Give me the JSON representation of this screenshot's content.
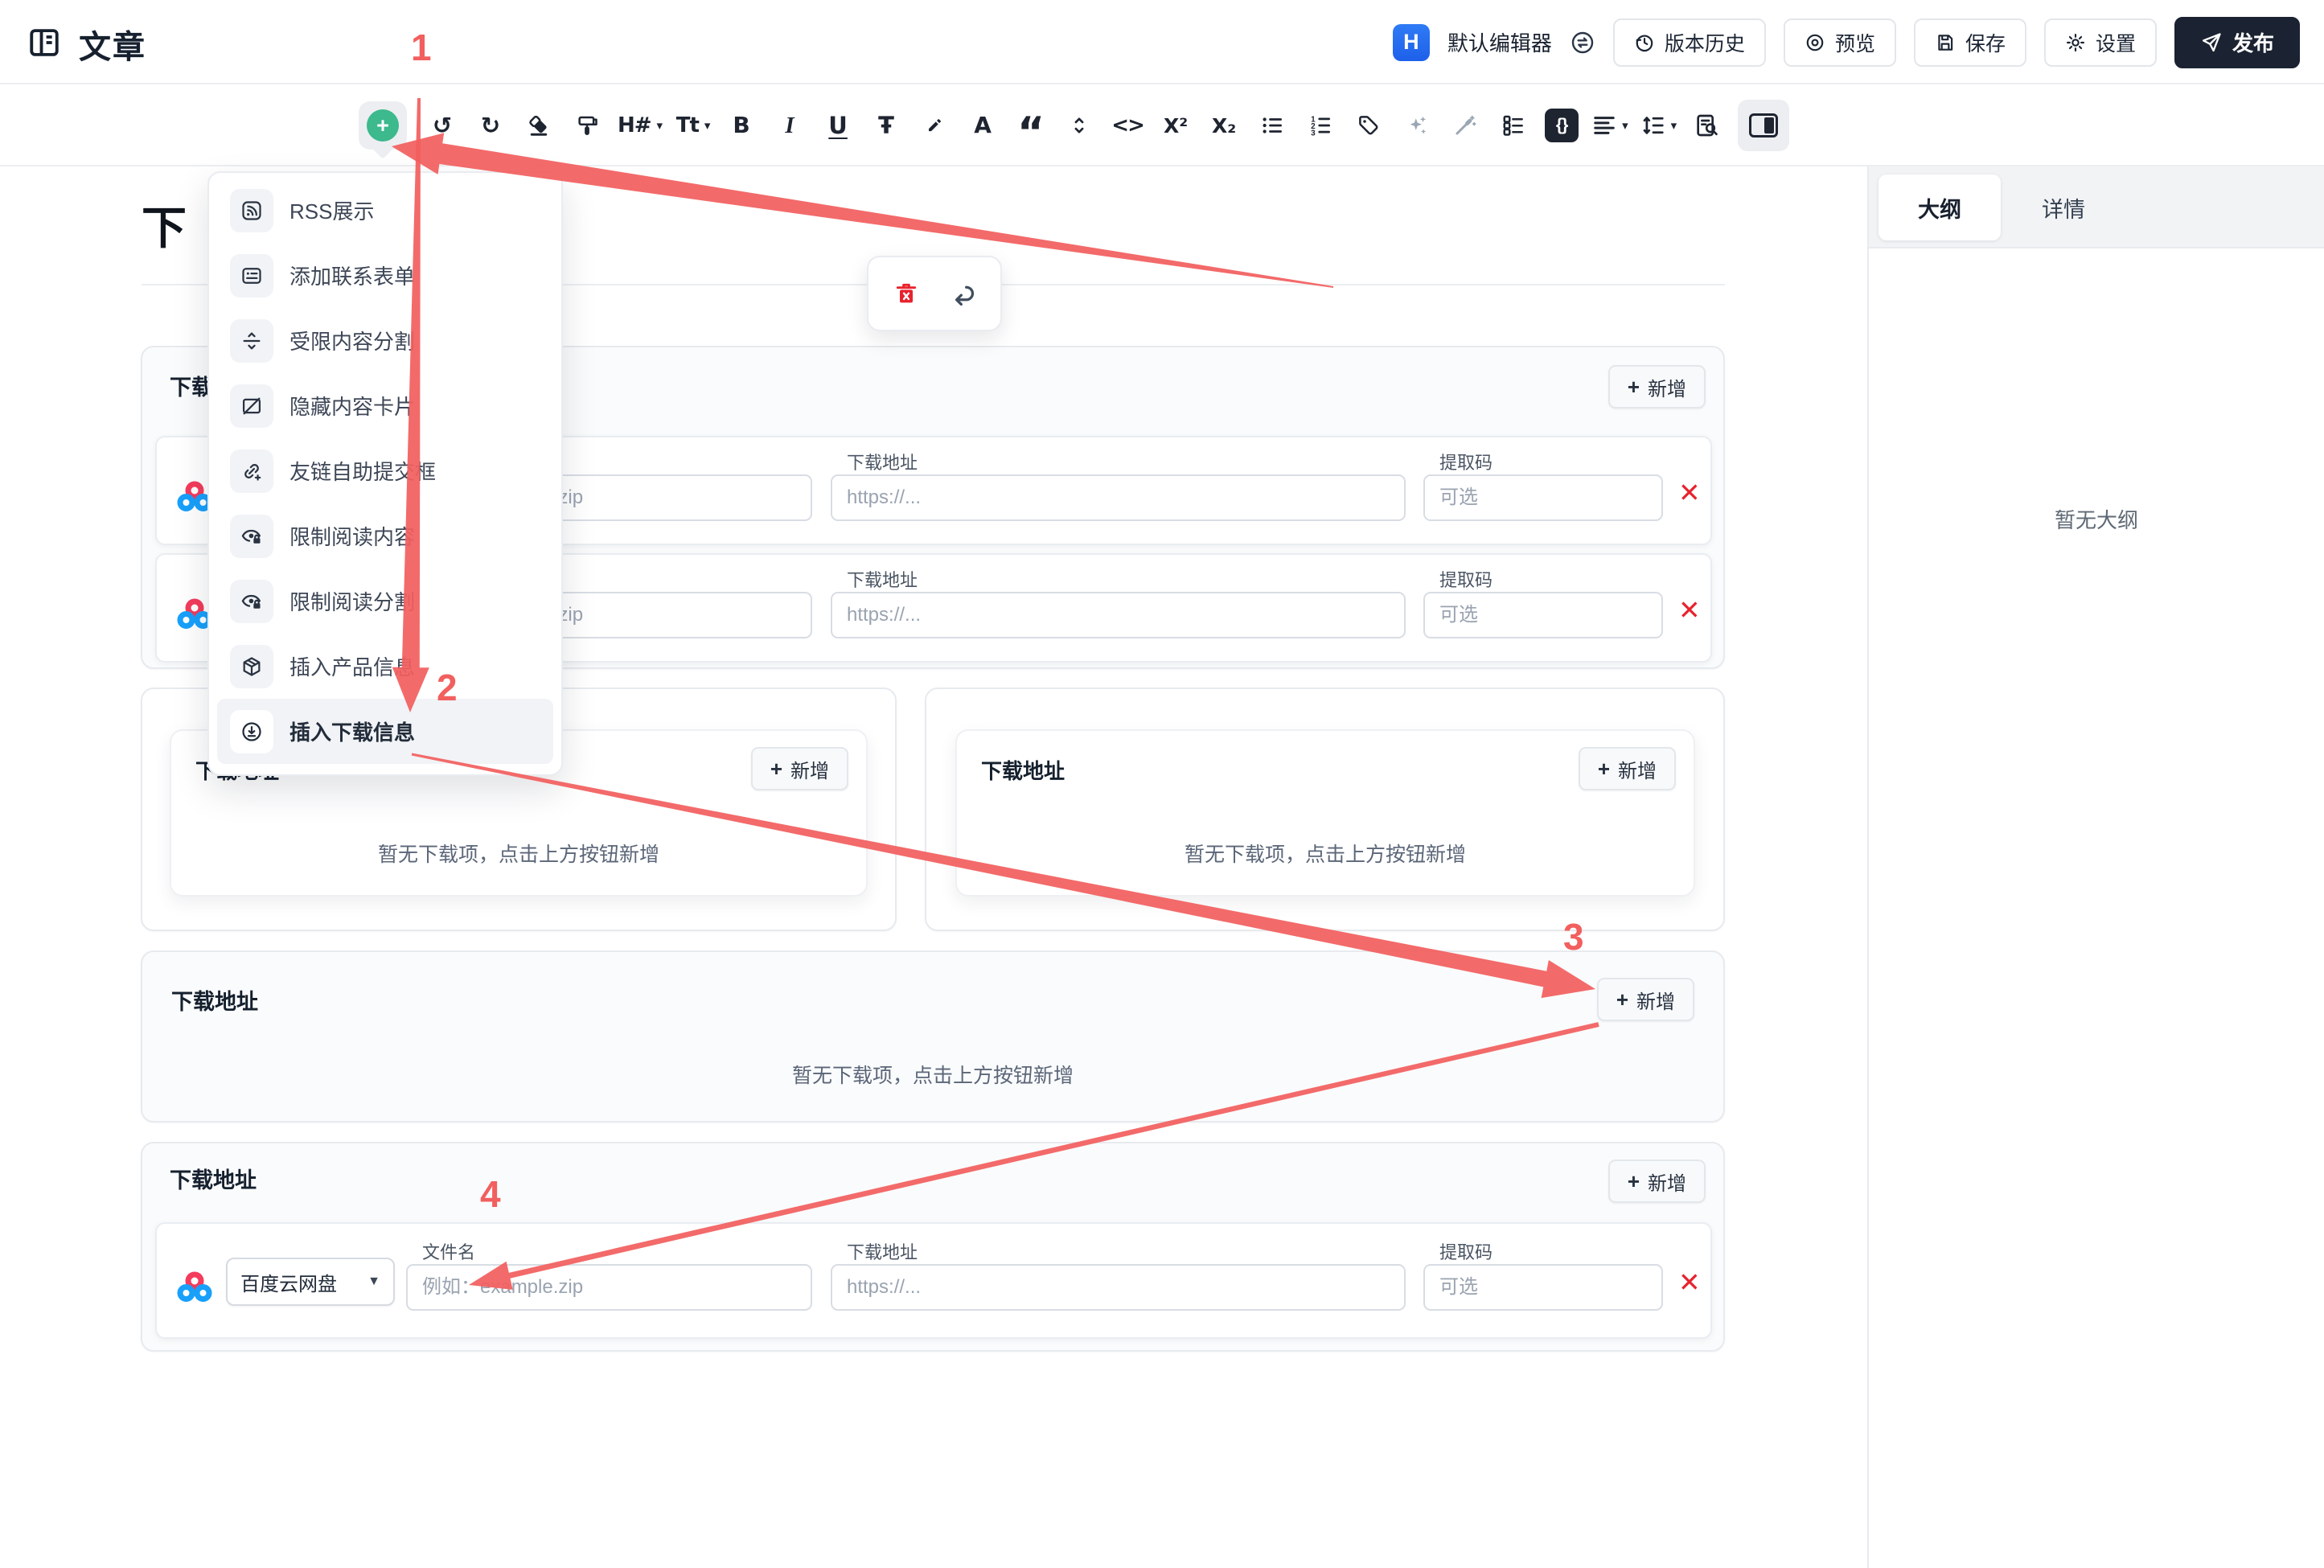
{
  "header": {
    "title": "文章",
    "editor": {
      "badge": "H",
      "name": "默认编辑器"
    },
    "actions": [
      {
        "label": "版本历史"
      },
      {
        "label": "预览"
      },
      {
        "label": "保存"
      },
      {
        "label": "设置"
      },
      {
        "label": "发布"
      }
    ]
  },
  "toolbar": {
    "icons": [
      {
        "name": "insert",
        "glyph": "+"
      },
      {
        "name": "undo",
        "glyph": "↺"
      },
      {
        "name": "redo",
        "glyph": "↻"
      },
      {
        "name": "eraser",
        "glyph": ""
      },
      {
        "name": "format-paint",
        "glyph": ""
      },
      {
        "name": "heading",
        "glyph": "H#"
      },
      {
        "name": "text-style",
        "glyph": "Tt"
      },
      {
        "name": "bold",
        "glyph": "B"
      },
      {
        "name": "italic",
        "glyph": "I"
      },
      {
        "name": "underline",
        "glyph": "U"
      },
      {
        "name": "strikethrough",
        "glyph": "Ŧ"
      },
      {
        "name": "highlight",
        "glyph": ""
      },
      {
        "name": "font-color",
        "glyph": "A"
      },
      {
        "name": "blockquote",
        "glyph": "“"
      },
      {
        "name": "expand",
        "glyph": ""
      },
      {
        "name": "inline-code",
        "glyph": "<>"
      },
      {
        "name": "superscript",
        "glyph": "X²"
      },
      {
        "name": "subscript",
        "glyph": "X₂"
      },
      {
        "name": "bullet-list",
        "glyph": ""
      },
      {
        "name": "ordered-list",
        "glyph": ""
      },
      {
        "name": "tag",
        "glyph": ""
      },
      {
        "name": "ai-sparkles",
        "glyph": ""
      },
      {
        "name": "magic-wand",
        "glyph": ""
      },
      {
        "name": "task-list",
        "glyph": ""
      },
      {
        "name": "code-block",
        "glyph": "{}"
      },
      {
        "name": "align",
        "glyph": ""
      },
      {
        "name": "line-height",
        "glyph": ""
      },
      {
        "name": "doc-search",
        "glyph": ""
      },
      {
        "name": "panel-toggle",
        "glyph": ""
      }
    ]
  },
  "insert_menu": {
    "items": [
      {
        "label": "RSS展示"
      },
      {
        "label": "添加联系表单"
      },
      {
        "label": "受限内容分割"
      },
      {
        "label": "隐藏内容卡片"
      },
      {
        "label": "友链自助提交框"
      },
      {
        "label": "限制阅读内容"
      },
      {
        "label": "限制阅读分割"
      },
      {
        "label": "插入产品信息"
      },
      {
        "label": "插入下载信息",
        "highlighted": true
      }
    ]
  },
  "content": {
    "title_text": "下",
    "download_label": "下载地址",
    "add_label": "新增",
    "empty_text": "暂无下载项，点击上方按钮新增",
    "provider": "百度云网盘",
    "fields": {
      "filename": "文件名",
      "url": "下载地址",
      "code": "提取码"
    },
    "placeholders": {
      "filename": "例如：example.zip",
      "url": "https://...",
      "code": "可选"
    }
  },
  "sidebar": {
    "tabs": [
      {
        "label": "大纲",
        "active": true
      },
      {
        "label": "详情",
        "active": false
      }
    ],
    "empty_text": "暂无大纲"
  },
  "annotations": {
    "steps": [
      "1",
      "2",
      "3",
      "4"
    ],
    "color": "#f25f5f"
  }
}
